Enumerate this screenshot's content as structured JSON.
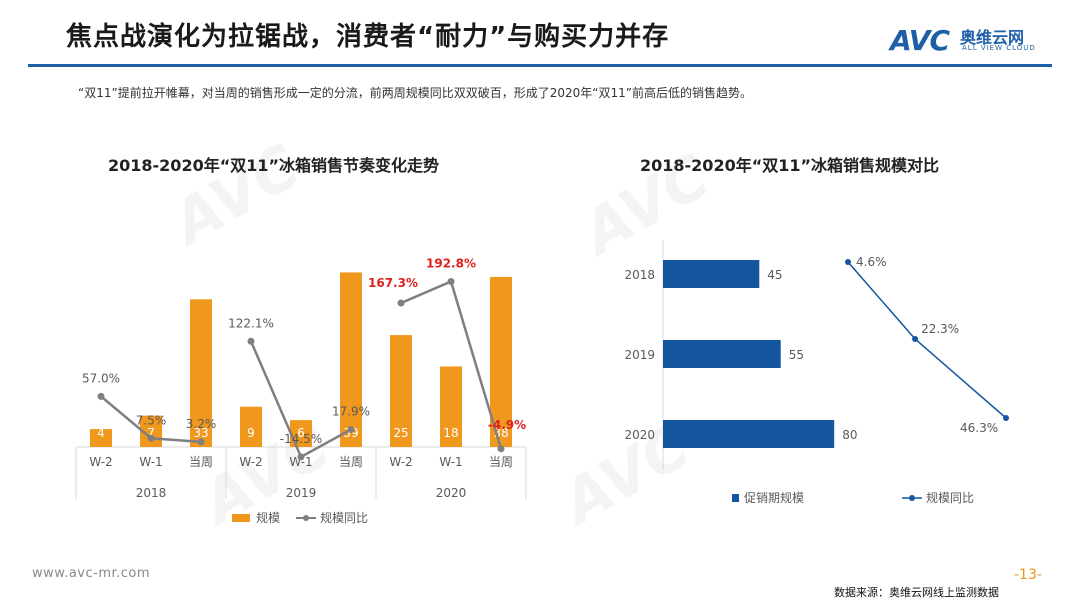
{
  "header": {
    "title": "焦点战演化为拉锯战，消费者“耐力”与购买力并存",
    "logo_mark": "AVC",
    "logo_cn": "奥维云网",
    "logo_en": "ALL VIEW CLOUD"
  },
  "subtitle": "“双11”提前拉开帷幕，对当周的销售形成一定的分流，前两周规模同比双双破百，形成了2020年“双11”前高后低的销售趋势。",
  "colors": {
    "accent_blue": "#1f5fa8",
    "bar_orange": "#f0971e",
    "line_gray": "#7f7f7f",
    "highlight_red": "#e02020",
    "bar_navy": "#1556a0"
  },
  "chart_data": [
    {
      "type": "bar",
      "title": "2018-2020年“双11”冰箱销售节奏变化走势",
      "categories": [
        "W-2",
        "W-1",
        "当周",
        "W-2",
        "W-1",
        "当周",
        "W-2",
        "W-1",
        "当周"
      ],
      "groups": [
        "2018",
        "2019",
        "2020"
      ],
      "series": [
        {
          "name": "规模",
          "kind": "bar",
          "values": [
            4,
            7,
            33,
            9,
            6,
            39,
            25,
            18,
            38
          ]
        },
        {
          "name": "规模同比",
          "kind": "line",
          "values": [
            57.0,
            7.5,
            3.2,
            122.1,
            -14.5,
            17.9,
            167.3,
            192.8,
            -4.9
          ],
          "labels": [
            "57.0%",
            "7.5%",
            "3.2%",
            "122.1%",
            "-14.5%",
            "17.9%",
            "167.3%",
            "192.8%",
            "-4.9%"
          ],
          "highlight": [
            false,
            false,
            false,
            false,
            false,
            false,
            true,
            true,
            true
          ]
        }
      ],
      "bar_ylim": [
        0,
        42
      ],
      "line_ylim": [
        -30,
        230
      ],
      "legend": [
        "规模",
        "规模同比"
      ]
    },
    {
      "type": "bar",
      "title": "2018-2020年“双11”冰箱销售规模对比",
      "orientation": "horizontal",
      "categories": [
        "2018",
        "2019",
        "2020"
      ],
      "series": [
        {
          "name": "促销期规模",
          "kind": "bar",
          "values": [
            45,
            55,
            80
          ]
        },
        {
          "name": "规模同比",
          "kind": "line",
          "values": [
            4.6,
            22.3,
            46.3
          ],
          "labels": [
            "4.6%",
            "22.3%",
            "46.3%"
          ]
        }
      ],
      "xlim": [
        0,
        100
      ],
      "legend": [
        "促销期规模",
        "规模同比"
      ]
    }
  ],
  "footer": {
    "url": "www.avc-mr.com",
    "page": "-13-",
    "source": "数据来源：奥维云网线上监测数据"
  }
}
